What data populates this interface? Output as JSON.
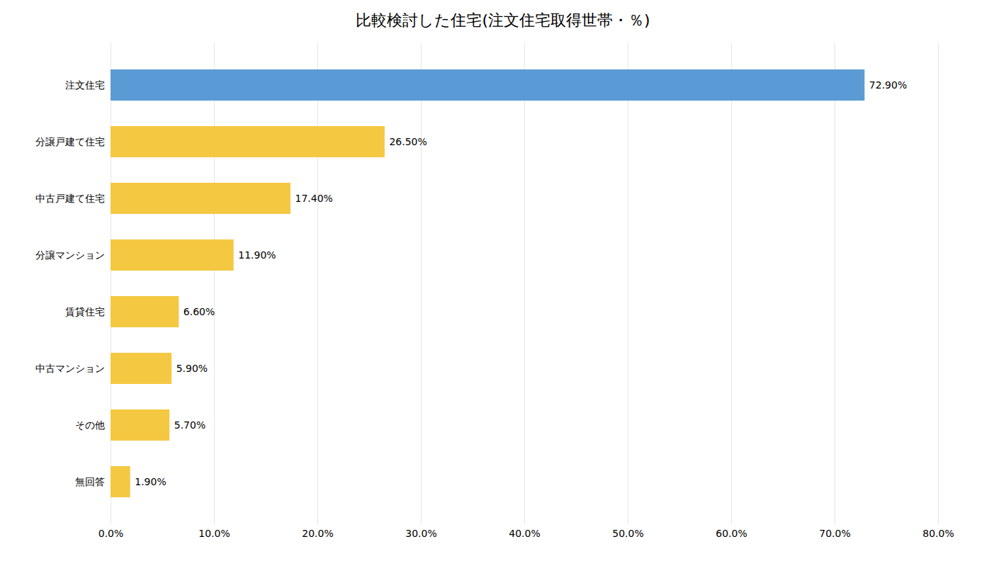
{
  "chart_data": {
    "type": "bar",
    "orientation": "horizontal",
    "title": "比較検討した住宅(注文住宅取得世帯・％)",
    "categories": [
      "無回答",
      "その他",
      "中古マンション",
      "賃貸住宅",
      "分譲マンション",
      "中古戸建て住宅",
      "分譲戸建て住宅",
      "注文住宅"
    ],
    "values": [
      1.9,
      5.7,
      5.9,
      6.6,
      11.9,
      17.4,
      26.5,
      72.9
    ],
    "value_labels": [
      "1.90%",
      "5.70%",
      "5.90%",
      "6.60%",
      "11.90%",
      "17.40%",
      "26.50%",
      "72.90%"
    ],
    "data_labels": true,
    "colors": [
      "#F5C842",
      "#F5C842",
      "#F5C842",
      "#F5C842",
      "#F5C842",
      "#F5C842",
      "#F5C842",
      "#5B9BD5"
    ],
    "xlim": [
      0,
      80
    ],
    "xticks": [
      {
        "value": 0,
        "label": "0.0%"
      },
      {
        "value": 10,
        "label": "10.0%"
      },
      {
        "value": 20,
        "label": "20.0%"
      },
      {
        "value": 30,
        "label": "30.0%"
      },
      {
        "value": 40,
        "label": "40.0%"
      },
      {
        "value": 50,
        "label": "50.0%"
      },
      {
        "value": 60,
        "label": "60.0%"
      },
      {
        "value": 70,
        "label": "70.0%"
      },
      {
        "value": 80,
        "label": "80.0%"
      }
    ],
    "grid": true
  }
}
